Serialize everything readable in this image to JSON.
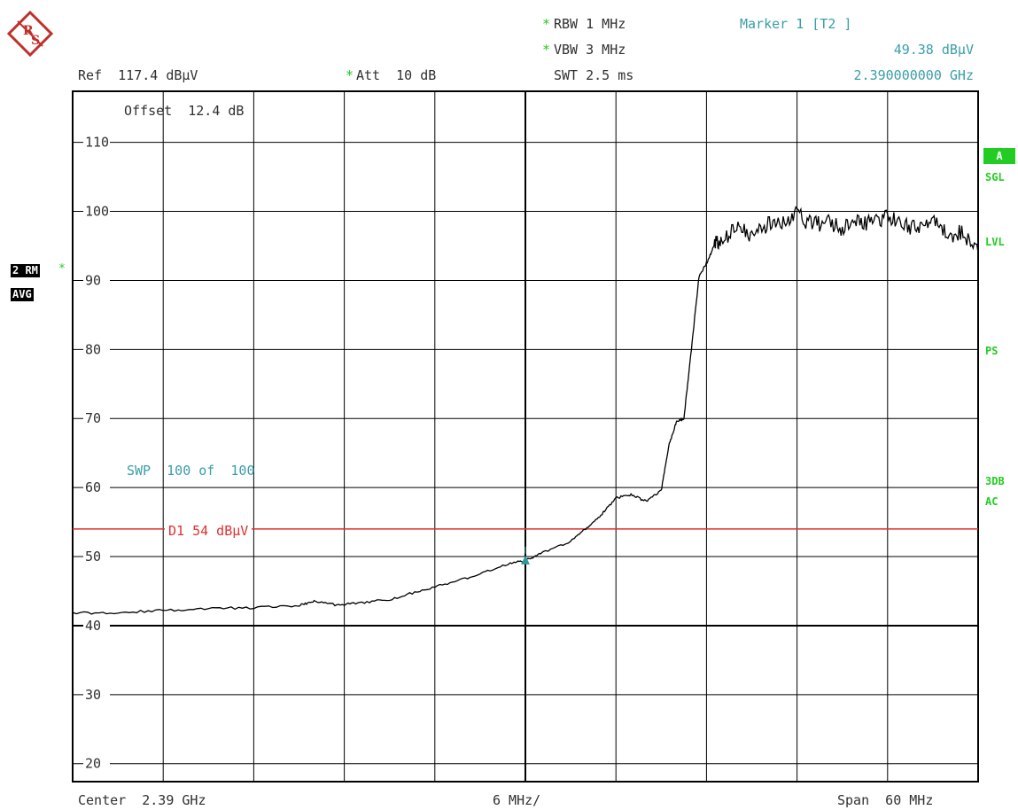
{
  "logo": {
    "text": "R&S"
  },
  "header": {
    "ref": "Ref  117.4 dBµV",
    "att_star": "*",
    "att": "Att  10 dB",
    "rbw_star": "*",
    "rbw": "RBW 1 MHz",
    "vbw_star": "*",
    "vbw": "VBW 3 MHz",
    "swt": "SWT 2.5 ms",
    "marker_title": "Marker 1 [T2 ]",
    "marker_level": "49.38 dBµV",
    "marker_freq": "2.390000000 GHz"
  },
  "offset": "Offset  12.4 dB",
  "sweep": "SWP  100 of  100",
  "display_line": {
    "label": "D1 54 dBµV",
    "color": "#e03030"
  },
  "trace_badges": {
    "rm": "2 RM",
    "rm_star": "*",
    "avg": "AVG"
  },
  "right_labels": {
    "a": "A",
    "sgl": "SGL",
    "lvl": "LVL",
    "ps": "PS",
    "tdb": "3DB",
    "ac": "AC"
  },
  "footer": {
    "center": "Center  2.39 GHz",
    "div": "6 MHz/",
    "span": "Span  60 MHz"
  },
  "colors": {
    "trace": "#000000",
    "grid": "#000000",
    "display_line": "#e03030",
    "marker": "#2a9a9a",
    "annotation": "#3a9ea8",
    "status": "#22cc22"
  },
  "chart_data": {
    "type": "line",
    "title": "",
    "xlabel": "",
    "ylabel": "",
    "x_unit": "MHz offset from center",
    "xlim": [
      -30,
      30
    ],
    "ylim": [
      17.4,
      117.4
    ],
    "grid": true,
    "y_ticks": [
      110,
      100,
      90,
      80,
      70,
      60,
      50,
      40,
      30,
      20
    ],
    "series": [
      {
        "x": [
          -30,
          -27,
          -24,
          -21,
          -18,
          -15,
          -14,
          -12.5,
          -11,
          -9,
          -7,
          -5,
          -3,
          -1,
          0,
          1,
          3,
          4,
          5,
          6,
          7,
          8,
          9,
          9.5,
          10,
          10.5,
          11,
          11.5,
          12,
          12.5,
          13,
          14,
          15,
          16,
          17,
          18,
          19,
          20,
          21,
          22,
          23,
          24,
          25,
          26,
          27,
          28,
          29,
          30
        ],
        "y": [
          41.8,
          41.9,
          42.2,
          42.5,
          42.6,
          42.9,
          43.6,
          43.0,
          43.3,
          43.8,
          45.0,
          46.2,
          47.5,
          49.0,
          49.4,
          50.5,
          52.2,
          54.0,
          56.0,
          58.5,
          59.0,
          58.0,
          59.5,
          66.0,
          69.5,
          70.0,
          80.0,
          90.5,
          92.5,
          95.0,
          96.0,
          97.5,
          96.5,
          98.0,
          98.5,
          99.5,
          98.0,
          98.5,
          97.5,
          99.0,
          98.0,
          99.5,
          98.0,
          97.5,
          98.5,
          96.5,
          97.0,
          94.0
        ],
        "marker": {
          "x": 0,
          "y": 49.38
        }
      }
    ],
    "display_line": 54
  }
}
